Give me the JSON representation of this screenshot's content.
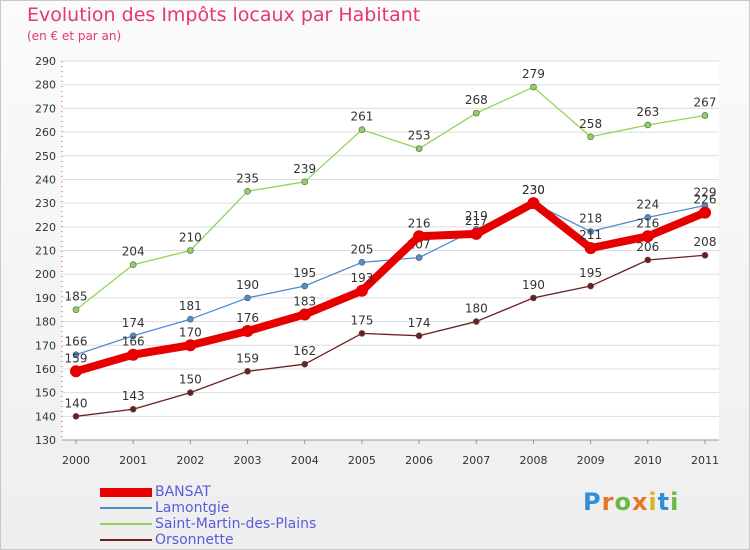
{
  "title": "Evolution des Impôts locaux par Habitant",
  "subtitle": "(en € et par an)",
  "logo": {
    "text": "Proxiti",
    "colors": [
      "#2f8fd8",
      "#e8742a",
      "#6bb843",
      "#e8742a",
      "#d9b22a",
      "#2f8fd8",
      "#6bb843"
    ]
  },
  "chart_data": {
    "type": "line",
    "categories": [
      "2000",
      "2001",
      "2002",
      "2003",
      "2004",
      "2005",
      "2006",
      "2007",
      "2008",
      "2009",
      "2010",
      "2011"
    ],
    "ylim": [
      130,
      290
    ],
    "yticks": [
      "130",
      "140",
      "150",
      "160",
      "170",
      "180",
      "190",
      "200",
      "210",
      "220",
      "230",
      "240",
      "250",
      "260",
      "270",
      "280",
      "290"
    ],
    "grid": "horizontal",
    "legend_position": "bottom-left",
    "series": [
      {
        "name": "Saint-Martin-des-Plains",
        "color": "#8fd45a",
        "values": [
          185,
          204,
          210,
          235,
          239,
          261,
          253,
          268,
          279,
          258,
          263,
          267
        ],
        "labels": [
          "185",
          "204",
          "210",
          "235",
          "239",
          "261",
          "253",
          "268",
          "279",
          "258",
          "263",
          "267"
        ]
      },
      {
        "name": "Lamontgie",
        "color": "#4f8fd0",
        "values": [
          166,
          174,
          181,
          190,
          195,
          205,
          207,
          219,
          230,
          218,
          224,
          229
        ],
        "labels": [
          "166",
          "174",
          "181",
          "190",
          "195",
          "205",
          "207",
          "219",
          "230",
          "218",
          "224",
          "229"
        ]
      },
      {
        "name": "Orsonnette",
        "color": "#6b1f1f",
        "values": [
          140,
          143,
          150,
          159,
          162,
          175,
          174,
          180,
          190,
          195,
          206,
          208
        ],
        "labels": [
          "140",
          "143",
          "150",
          "159",
          "162",
          "175",
          "174",
          "180",
          "190",
          "195",
          "206",
          "208"
        ]
      },
      {
        "name": "BANSAT",
        "color": "#e60000",
        "values": [
          159,
          166,
          170,
          176,
          183,
          193,
          216,
          217,
          230,
          211,
          216,
          226
        ],
        "labels": [
          "159",
          "166",
          "170",
          "176",
          "183",
          "193",
          "216",
          "217",
          "230",
          "211",
          "216",
          "226"
        ]
      }
    ],
    "legend": [
      {
        "name": "BANSAT",
        "color": "#e60000"
      },
      {
        "name": "Lamontgie",
        "color": "#4f8fd0"
      },
      {
        "name": "Saint-Martin-des-Plains",
        "color": "#8fd45a"
      },
      {
        "name": "Orsonnette",
        "color": "#6b1f1f"
      }
    ]
  }
}
